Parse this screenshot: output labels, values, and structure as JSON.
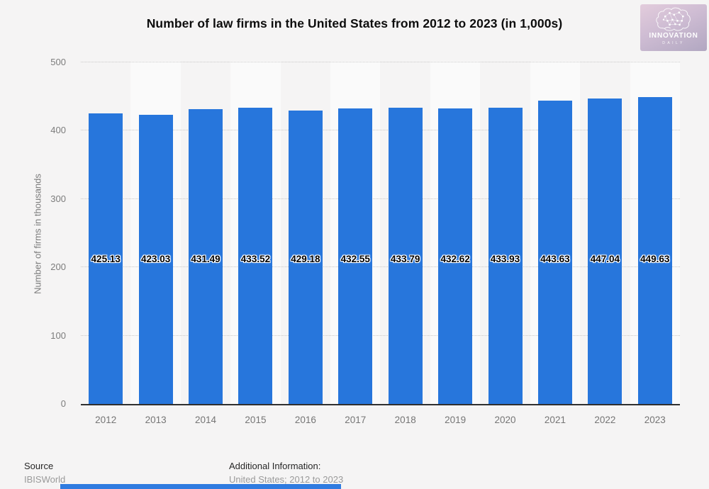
{
  "logo": {
    "line1": "INNOVATION",
    "line2": "DAILY",
    "icon": "brain-network-icon"
  },
  "chart_data": {
    "type": "bar",
    "title": "Number of law firms in the United States from 2012 to 2023 (in 1,000s)",
    "categories": [
      "2012",
      "2013",
      "2014",
      "2015",
      "2016",
      "2017",
      "2018",
      "2019",
      "2020",
      "2021",
      "2022",
      "2023"
    ],
    "values": [
      425.13,
      423.03,
      431.49,
      433.52,
      429.18,
      432.55,
      433.79,
      432.62,
      433.93,
      443.63,
      447.04,
      449.63
    ],
    "xlabel": "",
    "ylabel": "Number of firms in thousands",
    "ylim": [
      0,
      500
    ],
    "yticks": [
      0,
      100,
      200,
      300,
      400,
      500
    ],
    "grid": "horizontal-dotted",
    "legend": "none",
    "bar_color": "#2776dc",
    "value_label_style": "black-with-white-halo"
  },
  "footer": {
    "source_label": "Source",
    "source_value": "IBISWorld",
    "additional_label": "Additional Information:",
    "additional_value": "United States; 2012 to 2023"
  },
  "colors": {
    "page_background": "#f5f4f4",
    "bar": "#2776dc",
    "bottom_strip": "#2f7be0",
    "axis_text": "#7c7c7c",
    "logo_gradient_start": "#e3ccdc",
    "logo_gradient_end": "#b1a7c1"
  }
}
